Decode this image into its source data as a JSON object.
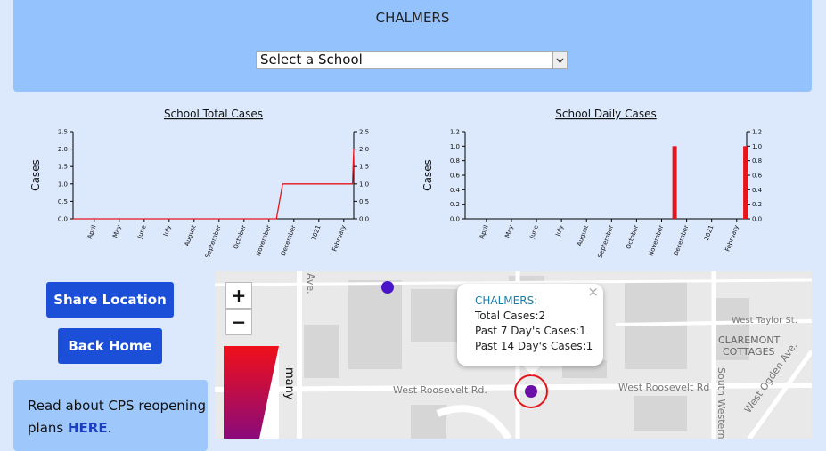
{
  "header": {
    "title": "CHALMERS",
    "select_placeholder": "Select a School"
  },
  "chart_data": [
    {
      "type": "line",
      "title": "School Total Cases",
      "y_label": "Cases",
      "color": "#e8141b",
      "x": [
        -0.85,
        7.3,
        7.55,
        10.35,
        10.4
      ],
      "values": [
        0,
        0,
        1,
        1,
        2
      ],
      "xlim": [
        -0.85,
        10.4
      ],
      "xticks": [
        {
          "value": 0,
          "label": "April"
        },
        {
          "value": 1,
          "label": "May"
        },
        {
          "value": 2,
          "label": "June"
        },
        {
          "value": 3,
          "label": "July"
        },
        {
          "value": 4,
          "label": "August"
        },
        {
          "value": 5,
          "label": "September"
        },
        {
          "value": 6,
          "label": "October"
        },
        {
          "value": 7,
          "label": "November"
        },
        {
          "value": 8,
          "label": "December"
        },
        {
          "value": 9,
          "label": "2021"
        },
        {
          "value": 10,
          "label": "February"
        }
      ],
      "ylim": [
        0,
        2.5
      ],
      "yticks": [
        {
          "value": 0,
          "label": "0.0"
        },
        {
          "value": 0.5,
          "label": "0.5"
        },
        {
          "value": 1,
          "label": "1.0"
        },
        {
          "value": 1.5,
          "label": "1.5"
        },
        {
          "value": 2,
          "label": "2.0"
        },
        {
          "value": 2.5,
          "label": "2.5"
        }
      ]
    },
    {
      "type": "bar",
      "title": "School Daily Cases",
      "y_label": "Cases",
      "color": "#e8141b",
      "x": [
        7.52,
        10.35
      ],
      "values": [
        1,
        1
      ],
      "xlim": [
        -0.85,
        10.4
      ],
      "xticks": [
        {
          "value": 0,
          "label": "April"
        },
        {
          "value": 1,
          "label": "May"
        },
        {
          "value": 2,
          "label": "June"
        },
        {
          "value": 3,
          "label": "July"
        },
        {
          "value": 4,
          "label": "August"
        },
        {
          "value": 5,
          "label": "September"
        },
        {
          "value": 6,
          "label": "October"
        },
        {
          "value": 7,
          "label": "November"
        },
        {
          "value": 8,
          "label": "December"
        },
        {
          "value": 9,
          "label": "2021"
        },
        {
          "value": 10,
          "label": "February"
        }
      ],
      "ylim": [
        0,
        1.2
      ],
      "yticks": [
        {
          "value": 0,
          "label": "0.0"
        },
        {
          "value": 0.2,
          "label": "0.2"
        },
        {
          "value": 0.4,
          "label": "0.4"
        },
        {
          "value": 0.6,
          "label": "0.6"
        },
        {
          "value": 0.8,
          "label": "0.8"
        },
        {
          "value": 1,
          "label": "1.0"
        },
        {
          "value": 1.2,
          "label": "1.2"
        }
      ]
    }
  ],
  "buttons": [
    "Share Location",
    "Back Home"
  ],
  "info": {
    "text": "Read about CPS reopening plans",
    "link": "HERE",
    "end": "."
  },
  "map": {
    "zoom_in": "+",
    "zoom_out": "−",
    "legend_label": "many",
    "popup": {
      "title": "CHALMERS:",
      "lines": [
        "Total Cases:2",
        "Past 7 Day's Cases:1",
        "Past 14 Day's Cases:1"
      ],
      "close": "×"
    },
    "street_labels": [
      "West Roosevelt Rd.",
      "West Roosevelt Rd",
      "West Taylor St.",
      "CLAREMONT",
      "COTTAGES",
      "South Western",
      "West Ogden Ave.",
      "Ave."
    ]
  }
}
